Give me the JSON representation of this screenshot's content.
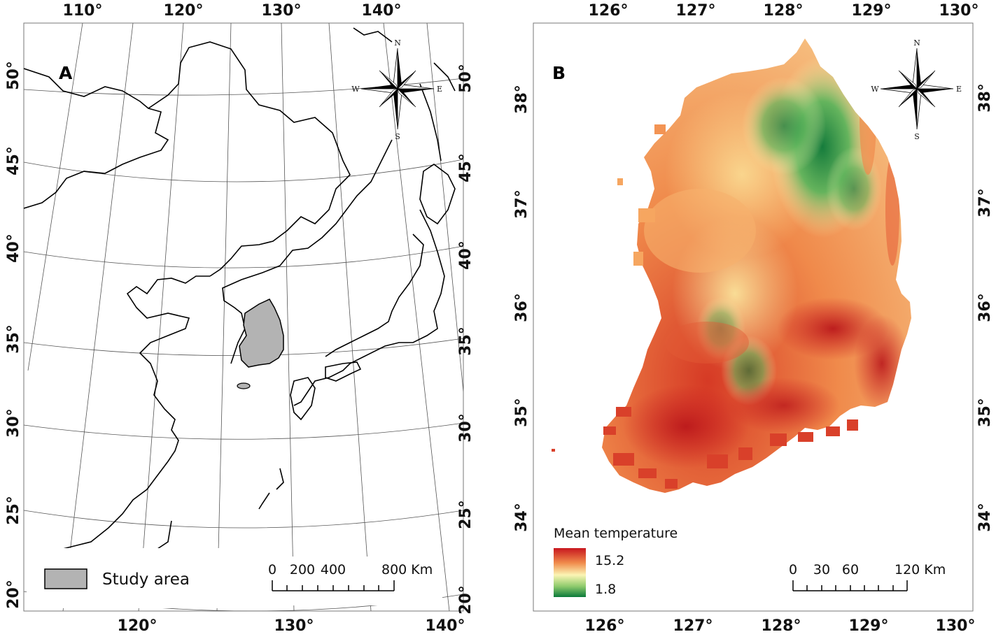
{
  "panel_a": {
    "letter": "A",
    "top_lon_ticks": [
      "110°",
      "120°",
      "130°",
      "140°"
    ],
    "bottom_lon_ticks": [
      "120°",
      "130°",
      "140°"
    ],
    "left_lat_ticks": [
      "50°",
      "45°",
      "40°",
      "35°",
      "30°",
      "25°",
      "20°"
    ],
    "right_lat_ticks": [
      "50°",
      "45°",
      "40°",
      "35°",
      "30°",
      "25°",
      "20°"
    ],
    "legend_label": "Study area",
    "legend_fill": "#b3b3b3",
    "scale_labels": [
      "0",
      "200",
      "400",
      "800 Km"
    ],
    "compass": {
      "n": "N",
      "s": "S",
      "e": "E",
      "w": "W"
    }
  },
  "panel_b": {
    "letter": "B",
    "top_lon_ticks": [
      "126°",
      "127°",
      "128°",
      "129°",
      "130°"
    ],
    "bottom_lon_ticks": [
      "126°",
      "127°",
      "128°",
      "129°",
      "130°"
    ],
    "left_lat_ticks": [
      "38°",
      "37°",
      "36°",
      "35°",
      "34°"
    ],
    "right_lat_ticks": [
      "38°",
      "37°",
      "36°",
      "35°",
      "34°"
    ],
    "legend_title": "Mean temperature",
    "legend_max": "15.2",
    "legend_min": "1.8",
    "colors": {
      "hot": "#c8161e",
      "warm": "#f08a4b",
      "mid": "#fbf5b4",
      "cool": "#8fcb6d",
      "cold": "#0a7a3a"
    },
    "scale_labels": [
      "0",
      "30",
      "60",
      "120 Km"
    ],
    "compass": {
      "n": "N",
      "s": "S",
      "e": "E",
      "w": "W"
    }
  }
}
